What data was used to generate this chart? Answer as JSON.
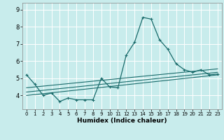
{
  "title": "",
  "xlabel": "Humidex (Indice chaleur)",
  "ylabel": "",
  "background_color": "#c8ecec",
  "grid_color": "#ffffff",
  "line_color": "#1a6b6b",
  "x_ticks": [
    0,
    1,
    2,
    3,
    4,
    5,
    6,
    7,
    8,
    9,
    10,
    11,
    12,
    13,
    14,
    15,
    16,
    17,
    18,
    19,
    20,
    21,
    22,
    23
  ],
  "y_ticks": [
    4,
    5,
    6,
    7,
    8,
    9
  ],
  "ylim": [
    3.2,
    9.4
  ],
  "xlim": [
    -0.5,
    23.5
  ],
  "curve1_x": [
    0,
    1,
    2,
    3,
    4,
    5,
    6,
    7,
    8,
    9,
    10,
    11,
    12,
    13,
    14,
    15,
    16,
    17,
    18,
    19,
    20,
    21,
    22,
    23
  ],
  "curve1_y": [
    5.2,
    4.65,
    4.0,
    4.15,
    3.65,
    3.85,
    3.75,
    3.75,
    3.75,
    5.0,
    4.5,
    4.45,
    6.35,
    7.1,
    8.55,
    8.45,
    7.25,
    6.7,
    5.85,
    5.5,
    5.35,
    5.5,
    5.2,
    5.25
  ],
  "line1_x": [
    0,
    23
  ],
  "line1_y": [
    4.0,
    5.2
  ],
  "line2_x": [
    0,
    23
  ],
  "line2_y": [
    4.2,
    5.35
  ],
  "line3_x": [
    0,
    23
  ],
  "line3_y": [
    4.45,
    5.55
  ]
}
